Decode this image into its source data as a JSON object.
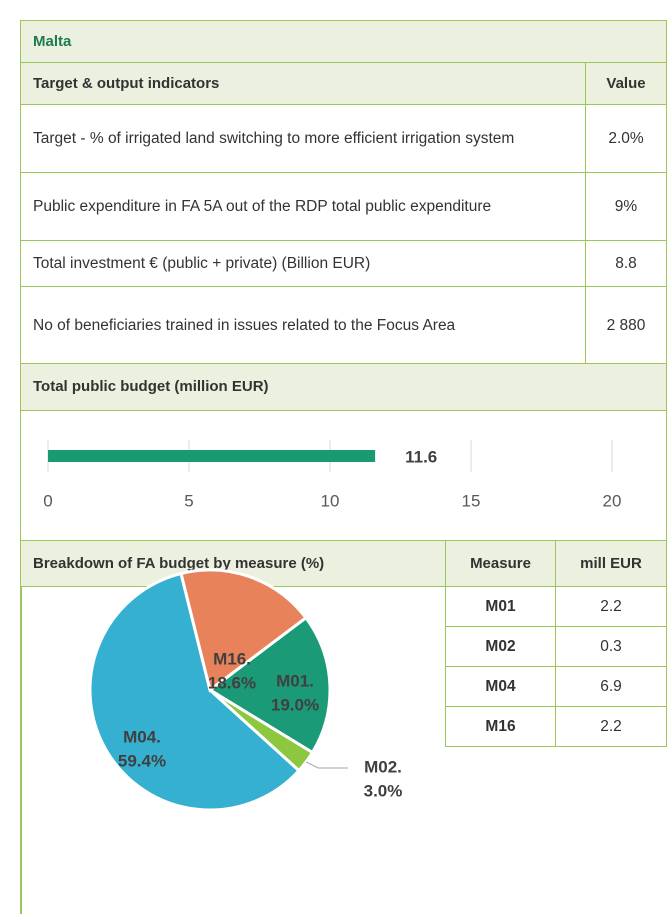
{
  "header": {
    "title": "Malta"
  },
  "indicators": {
    "columns": [
      "Target & output indicators",
      "Value"
    ],
    "rows": [
      [
        "Target - % of irrigated land switching to more efficient irrigation system",
        "2.0%"
      ],
      [
        "Public expenditure in FA 5A out of the RDP total public expenditure",
        "9%"
      ],
      [
        "Total investment € (public + private) (Billion EUR)",
        "8.8"
      ],
      [
        "No of beneficiaries trained in issues related to the Focus Area",
        "2 880"
      ]
    ]
  },
  "measures": {
    "columns": [
      "Measure",
      "mill EUR"
    ],
    "rows": [
      [
        "M01",
        "2.2"
      ],
      [
        "M02",
        "0.3"
      ],
      [
        "M04",
        "6.9"
      ],
      [
        "M16",
        "2.2"
      ]
    ]
  },
  "chart_data": [
    {
      "type": "bar",
      "title": "Total public budget (million EUR)",
      "orientation": "horizontal",
      "values": [
        11.6
      ],
      "color": "#1a9a73",
      "xlim": [
        0,
        20
      ],
      "xticks": [
        0,
        5,
        10,
        15,
        20
      ],
      "grid": true
    },
    {
      "type": "pie",
      "title": "Breakdown of FA budget by measure (%)",
      "categories": [
        "M01.",
        "M02.",
        "M04.",
        "M16."
      ],
      "values": [
        19.0,
        3.0,
        59.4,
        18.6
      ],
      "value_labels": [
        "19.0%",
        "3.0%",
        "59.4%",
        "18.6%"
      ],
      "colors": [
        "#1b9a77",
        "#8dc63f",
        "#35b0d1",
        "#e8825a"
      ]
    }
  ]
}
